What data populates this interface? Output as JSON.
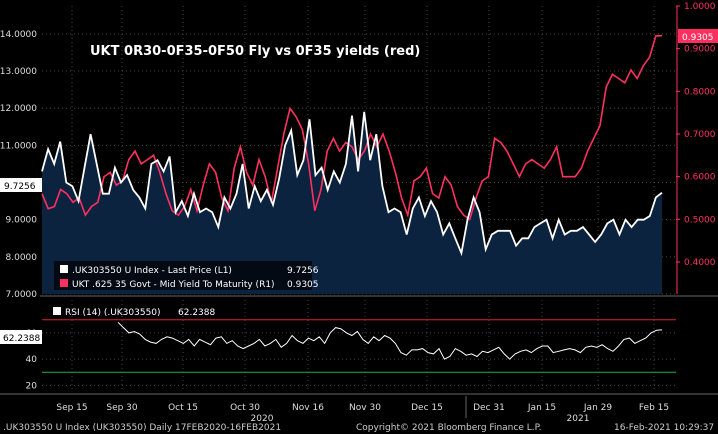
{
  "chart_data": [
    {
      "type": "area",
      "title": "UKT 0R30-0F35-0F50 Fly vs 0F35 yields (red)",
      "grid": true,
      "x_labels": [
        "Sep 15",
        "Sep 30",
        "Oct 15",
        "Oct 30",
        "Nov 16",
        "Nov 30",
        "Dec 15",
        "Dec 31",
        "Jan 15",
        "Jan 29",
        "Feb 15"
      ],
      "year_labels": [
        "2020",
        "2021"
      ],
      "left_axis": {
        "ylim": [
          7.0,
          14.75
        ],
        "ticks": [
          "7.0000",
          "8.0000",
          "9.0000",
          "10.0000",
          "11.0000",
          "12.0000",
          "13.0000",
          "14.0000"
        ]
      },
      "right_axis": {
        "ylim": [
          0.325,
          1.0
        ],
        "ticks": [
          "0.4000",
          "0.5000",
          "0.6000",
          "0.7000",
          "0.8000",
          "0.9000",
          "1.0000"
        ]
      },
      "series": [
        {
          "name": ".UK303550 U Index - Last Price (L1)",
          "axis": "left",
          "last_value": "9.7256",
          "color": "#ffffff",
          "fill": "#0c2340",
          "values": [
            10.3,
            10.9,
            10.5,
            11.1,
            10.0,
            9.9,
            9.5,
            10.4,
            11.3,
            10.5,
            9.7,
            9.7,
            10.4,
            10.0,
            10.2,
            9.8,
            9.6,
            9.3,
            10.5,
            10.6,
            10.3,
            10.7,
            9.2,
            9.5,
            9.1,
            9.7,
            9.2,
            9.3,
            9.2,
            8.8,
            9.6,
            9.3,
            9.7,
            10.5,
            9.3,
            9.9,
            9.5,
            9.8,
            9.4,
            10.1,
            11.0,
            11.4,
            10.2,
            10.6,
            11.7,
            10.2,
            10.4,
            9.8,
            10.3,
            10.0,
            10.5,
            11.8,
            10.3,
            11.9,
            10.6,
            11.3,
            9.9,
            9.2,
            9.3,
            9.2,
            8.6,
            9.3,
            9.6,
            9.1,
            9.5,
            9.2,
            8.6,
            8.9,
            8.5,
            8.1,
            9.0,
            9.6,
            9.2,
            8.2,
            8.6,
            8.7,
            8.7,
            8.7,
            8.3,
            8.5,
            8.5,
            8.8,
            8.9,
            9.0,
            8.5,
            9.0,
            8.6,
            8.7,
            8.7,
            8.8,
            8.6,
            8.4,
            8.6,
            8.9,
            9.0,
            8.6,
            9.0,
            8.8,
            9.0,
            9.0,
            9.1,
            9.6,
            9.7256
          ]
        },
        {
          "name": "UKT .625 35 Govt - Mid Yield To Maturity (R1)",
          "axis": "right",
          "last_value": "0.9305",
          "color": "#ff3060",
          "values": [
            0.56,
            0.525,
            0.53,
            0.57,
            0.56,
            0.54,
            0.55,
            0.51,
            0.53,
            0.54,
            0.6,
            0.61,
            0.58,
            0.59,
            0.64,
            0.66,
            0.63,
            0.64,
            0.65,
            0.61,
            0.56,
            0.52,
            0.51,
            0.53,
            0.57,
            0.52,
            0.58,
            0.63,
            0.61,
            0.55,
            0.52,
            0.62,
            0.67,
            0.61,
            0.58,
            0.64,
            0.6,
            0.54,
            0.62,
            0.7,
            0.76,
            0.74,
            0.71,
            0.63,
            0.52,
            0.57,
            0.66,
            0.69,
            0.66,
            0.68,
            0.67,
            0.64,
            0.66,
            0.7,
            0.67,
            0.7,
            0.66,
            0.61,
            0.55,
            0.51,
            0.59,
            0.6,
            0.62,
            0.56,
            0.55,
            0.6,
            0.58,
            0.53,
            0.51,
            0.5,
            0.55,
            0.59,
            0.6,
            0.69,
            0.68,
            0.66,
            0.63,
            0.6,
            0.63,
            0.64,
            0.63,
            0.62,
            0.64,
            0.67,
            0.6,
            0.6,
            0.6,
            0.62,
            0.66,
            0.69,
            0.72,
            0.81,
            0.84,
            0.83,
            0.82,
            0.85,
            0.83,
            0.86,
            0.88,
            0.93,
            0.9305
          ]
        }
      ]
    },
    {
      "type": "line",
      "title": "RSI (14) (.UK303550) 62.2388",
      "legend_label": "RSI (14) (.UK303550)",
      "last_value": "62.2388",
      "ylim": [
        15,
        85
      ],
      "ticks": [
        "20",
        "40",
        "60"
      ],
      "overbought": 70,
      "oversold": 30,
      "color": "#ffffff",
      "values": [
        68,
        64,
        60,
        61,
        59,
        55,
        53,
        52,
        55,
        57,
        56,
        54,
        52,
        55,
        50,
        55,
        53,
        51,
        56,
        57,
        52,
        54,
        50,
        48,
        50,
        52,
        55,
        50,
        52,
        55,
        49,
        52,
        58,
        54,
        52,
        56,
        54,
        57,
        52,
        60,
        64,
        63,
        60,
        58,
        61,
        55,
        52,
        57,
        54,
        58,
        56,
        52,
        45,
        43,
        47,
        47,
        48,
        45,
        44,
        48,
        40,
        42,
        48,
        46,
        43,
        44,
        42,
        46,
        45,
        47,
        49,
        44,
        40,
        44,
        46,
        47,
        45,
        48,
        50,
        50,
        45,
        46,
        47,
        48,
        47,
        45,
        49,
        50,
        49,
        51,
        48,
        46,
        50,
        55,
        56,
        52,
        54,
        56,
        60,
        62,
        62.2388
      ]
    }
  ],
  "footer": {
    "left": ".UK303550 U Index (UK303550)  Daily 17FEB2020-16FEB2021",
    "center": "Copyright© 2021 Bloomberg Finance L.P.",
    "right": "16-Feb-2021 10:29:37"
  },
  "colors": {
    "up_area": "#0c2340",
    "red_series": "#ff3060",
    "grid": "#444444",
    "obline": "#e0202a",
    "osline": "#20b040"
  }
}
